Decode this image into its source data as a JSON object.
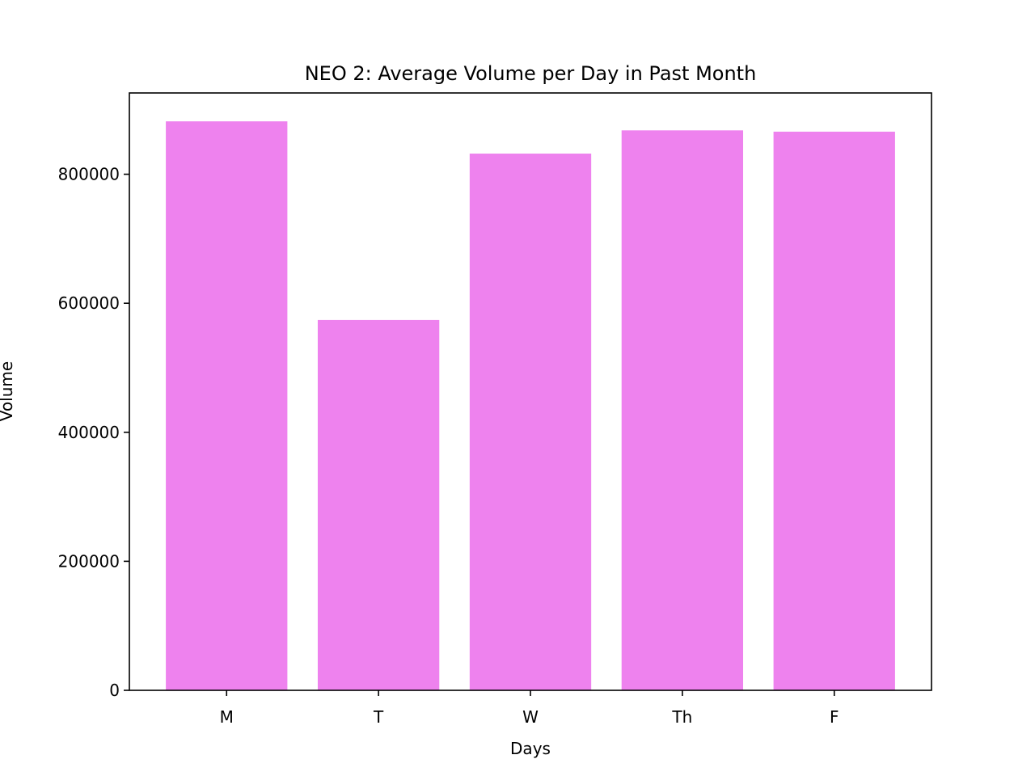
{
  "chart_data": {
    "type": "bar",
    "title": "NEO 2: Average Volume per Day in Past Month",
    "xlabel": "Days",
    "ylabel": "Volume",
    "categories": [
      "M",
      "T",
      "W",
      "Th",
      "F"
    ],
    "values": [
      882000,
      574000,
      832000,
      868000,
      866000
    ],
    "ylim": [
      0,
      926000
    ],
    "yticks": [
      0,
      200000,
      400000,
      600000,
      800000
    ],
    "ytick_labels": [
      "0",
      "200000",
      "400000",
      "600000",
      "800000"
    ],
    "bar_color": "#ee82ee",
    "grid": false,
    "legend": "none"
  }
}
